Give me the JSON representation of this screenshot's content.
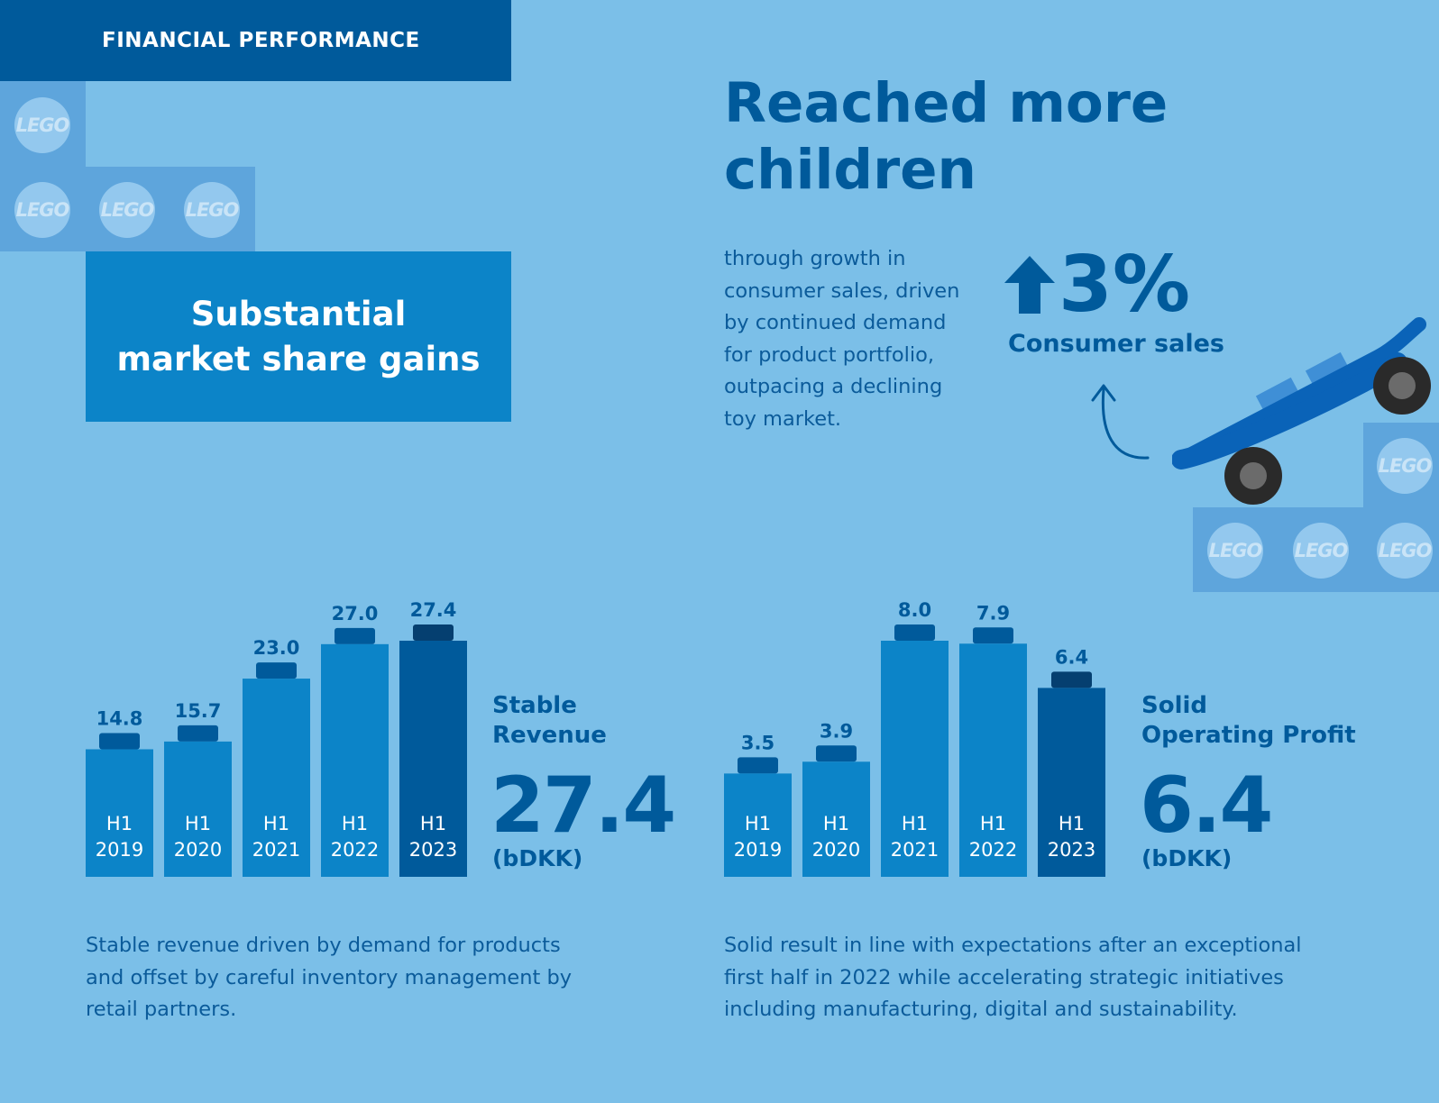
{
  "header": {
    "section_label": "FINANCIAL PERFORMANCE"
  },
  "brand_stud_text": "LEGO",
  "market_share": {
    "line1": "Substantial",
    "line2": "market share gains"
  },
  "reach": {
    "title_line1": "Reached more",
    "title_line2": "children",
    "body": [
      "through growth in",
      "consumer sales, driven",
      "by continued demand",
      "for product portfolio,",
      "outpacing a declining",
      "toy market."
    ],
    "stat_value": "3%",
    "stat_label": "Consumer sales"
  },
  "revenue": {
    "title_line1": "Stable",
    "title_line2": "Revenue",
    "value": "27.4",
    "unit": "(bDKK)",
    "footnote": [
      "Stable revenue driven by demand for products",
      "and offset by careful inventory management by",
      "retail partners."
    ]
  },
  "profit": {
    "title_line1": "Solid",
    "title_line2": "Operating Profit",
    "value": "6.4",
    "unit": "(bDKK)",
    "footnote": [
      "Solid result in line with expectations after an exceptional",
      "first half in 2022 while accelerating strategic initiatives",
      "including manufacturing, digital and sustainability."
    ]
  },
  "colors": {
    "background": "#7bbfe8",
    "dark_blue": "#005a9b",
    "bar_blue": "#0c84c8",
    "highlight_bar": "#005a9b",
    "brick": "#5ea5dc"
  },
  "chart_data": [
    {
      "type": "bar",
      "title": "Stable Revenue",
      "ylabel": "(bDKK)",
      "categories": [
        "H1 2019",
        "H1 2020",
        "H1 2021",
        "H1 2022",
        "H1 2023"
      ],
      "values": [
        14.8,
        15.7,
        23.0,
        27.0,
        27.4
      ],
      "value_labels": [
        "14.8",
        "15.7",
        "23.0",
        "27.0",
        "27.4"
      ],
      "highlight_index": 4,
      "ylim": [
        0,
        27.4
      ],
      "grid": false
    },
    {
      "type": "bar",
      "title": "Solid Operating Profit",
      "ylabel": "(bDKK)",
      "categories": [
        "H1 2019",
        "H1 2020",
        "H1 2021",
        "H1 2022",
        "H1 2023"
      ],
      "values": [
        3.5,
        3.9,
        8.0,
        7.9,
        6.4
      ],
      "value_labels": [
        "3.5",
        "3.9",
        "8.0",
        "7.9",
        "6.4"
      ],
      "highlight_index": 4,
      "ylim": [
        0,
        8.0
      ],
      "grid": false
    }
  ]
}
